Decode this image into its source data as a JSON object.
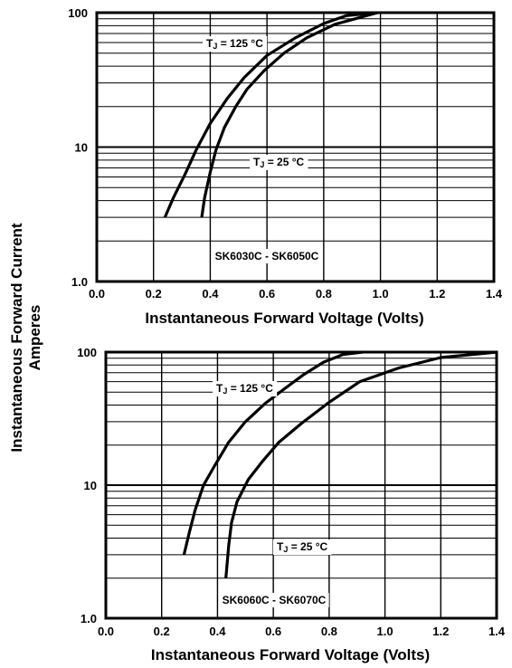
{
  "y_axis_title": [
    "Instantaneous Forward Current",
    "Amperes"
  ],
  "chart_data": [
    {
      "type": "line",
      "xlabel": "Instantaneous Forward Voltage (Volts)",
      "ylabel": "Instantaneous Forward Current Amperes",
      "xlim": [
        0.0,
        1.4
      ],
      "ylim": [
        1.0,
        100
      ],
      "yscale": "log",
      "grid": true,
      "x_ticks": [
        "0.0",
        "0.2",
        "0.4",
        "0.6",
        "0.8",
        "1.0",
        "1.2",
        "1.4"
      ],
      "y_ticks": [
        "1.0",
        "10",
        "100"
      ],
      "annotation": "SK6030C - SK6050C",
      "series": [
        {
          "name": "TJ = 125 °C",
          "label_main": "T",
          "label_sub": "J",
          "label_rest": " = 125 °C",
          "x": [
            0.24,
            0.27,
            0.31,
            0.35,
            0.4,
            0.46,
            0.52,
            0.6,
            0.7,
            0.8,
            0.88,
            0.99
          ],
          "y": [
            3.0,
            4.2,
            6.2,
            9.5,
            15,
            23,
            33,
            48,
            65,
            83,
            95,
            100
          ]
        },
        {
          "name": "TJ = 25 °C",
          "label_main": "T",
          "label_sub": "J",
          "label_rest": " = 25 °C",
          "x": [
            0.37,
            0.38,
            0.4,
            0.42,
            0.45,
            0.49,
            0.53,
            0.59,
            0.66,
            0.74,
            0.84,
            0.99
          ],
          "y": [
            3.0,
            4.2,
            6.5,
            9.5,
            14,
            20,
            27,
            37,
            50,
            65,
            82,
            100
          ]
        }
      ]
    },
    {
      "type": "line",
      "xlabel": "Instantaneous Forward Voltage (Volts)",
      "ylabel": "Instantaneous Forward Current Amperes",
      "xlim": [
        0.0,
        1.4
      ],
      "ylim": [
        1.0,
        100
      ],
      "yscale": "log",
      "grid": true,
      "x_ticks": [
        "0.0",
        "0.2",
        "0.4",
        "0.6",
        "0.8",
        "1.0",
        "1.2",
        "1.4"
      ],
      "y_ticks": [
        "1.0",
        "10",
        "100"
      ],
      "annotation": "SK6060C - SK6070C",
      "series": [
        {
          "name": "TJ = 125 °C",
          "label_main": "T",
          "label_sub": "J",
          "label_rest": " = 125 °C",
          "x": [
            0.28,
            0.3,
            0.32,
            0.35,
            0.39,
            0.44,
            0.5,
            0.57,
            0.64,
            0.71,
            0.78,
            0.85,
            0.92
          ],
          "y": [
            3.0,
            4.5,
            6.5,
            10,
            14,
            21,
            30,
            41,
            53,
            68,
            84,
            96,
            100
          ]
        },
        {
          "name": "TJ = 25 °C",
          "label_main": "T",
          "label_sub": "J",
          "label_rest": " = 25 °C",
          "x": [
            0.43,
            0.44,
            0.45,
            0.47,
            0.51,
            0.56,
            0.62,
            0.7,
            0.8,
            0.91,
            1.05,
            1.2,
            1.4
          ],
          "y": [
            2.0,
            3.5,
            5.2,
            7.5,
            11,
            15,
            21,
            29,
            42,
            60,
            76,
            91,
            100
          ]
        }
      ]
    }
  ]
}
